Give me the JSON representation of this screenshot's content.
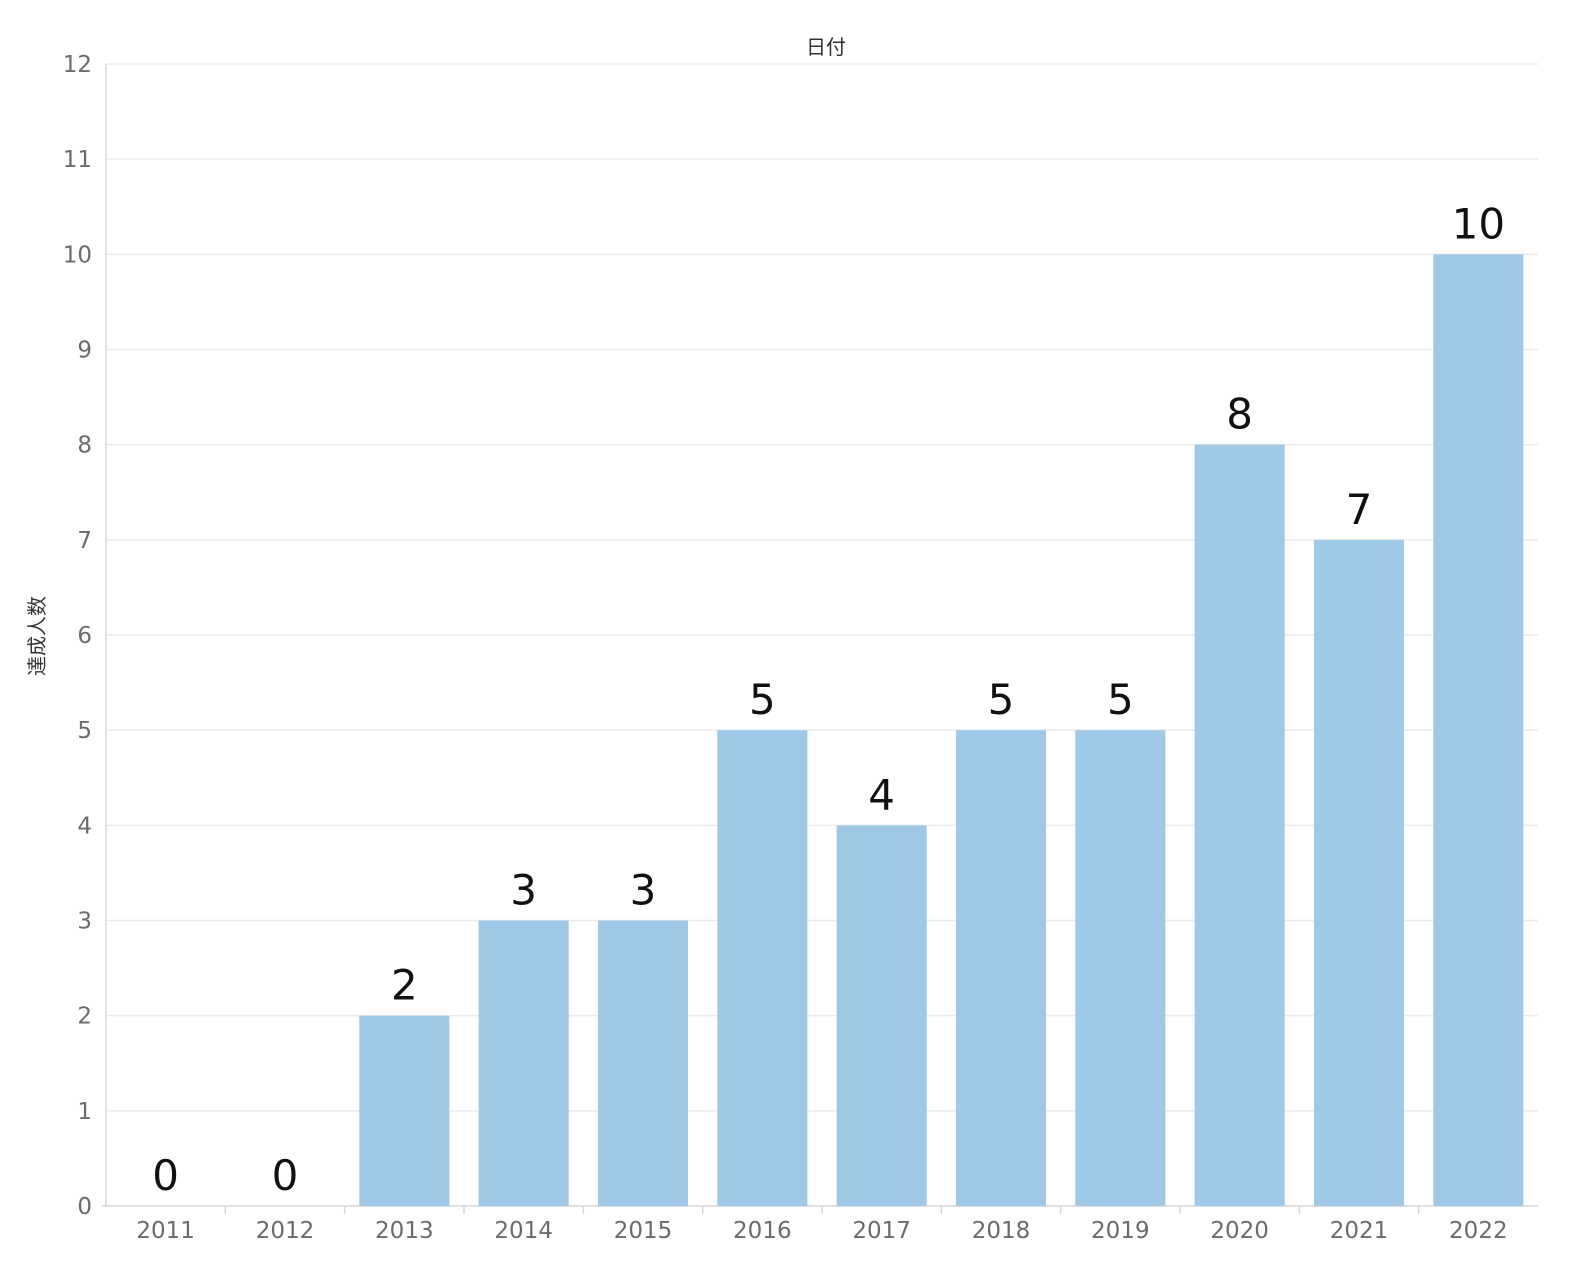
{
  "chart_data": {
    "type": "bar",
    "title": "日付",
    "xlabel": "",
    "ylabel": "達成人数",
    "categories": [
      "2011",
      "2012",
      "2013",
      "2014",
      "2015",
      "2016",
      "2017",
      "2018",
      "2019",
      "2020",
      "2021",
      "2022"
    ],
    "values": [
      0,
      0,
      2,
      3,
      3,
      5,
      4,
      5,
      5,
      8,
      7,
      10
    ],
    "ylim": [
      0,
      12
    ],
    "yticks": [
      0,
      1,
      2,
      3,
      4,
      5,
      6,
      7,
      8,
      9,
      10,
      11,
      12
    ],
    "grid": true,
    "data_labels": true,
    "legend": "none",
    "colors": {
      "bar": "#a0c9e8",
      "grid": "#ececec",
      "tick_text": "#6b6b6b",
      "label_text": "#111111"
    }
  }
}
